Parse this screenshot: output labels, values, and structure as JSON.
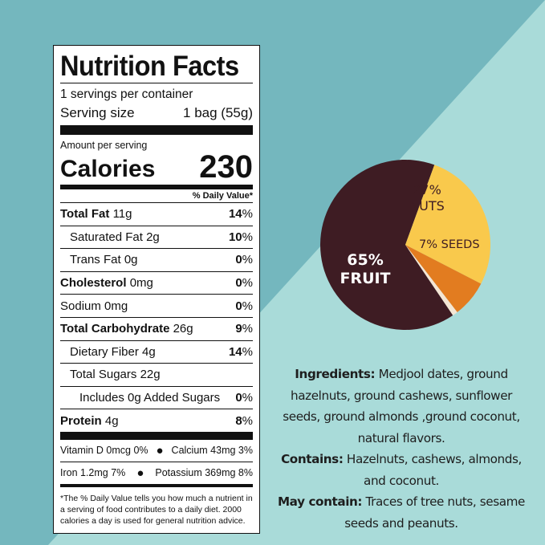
{
  "colors": {
    "background_dark": "#74b7be",
    "background_light": "#a9dbd9",
    "fruit": "#3e1c23",
    "nuts": "#f9c94c",
    "seeds": "#e27c20",
    "other": "#f4e6d4"
  },
  "nutrition": {
    "title": "Nutrition Facts",
    "servings": "1 servings per container",
    "serving_size_label": "Serving size",
    "serving_size_value": "1 bag (55g)",
    "amount_per_serving": "Amount per serving",
    "calories_label": "Calories",
    "calories_value": "230",
    "dv_header": "% Daily Value*",
    "rows": [
      {
        "label": "Total Fat",
        "amount": "11g",
        "dv": "14",
        "bold": true
      },
      {
        "label": "Saturated Fat",
        "amount": "2g",
        "dv": "10"
      },
      {
        "label": "Trans Fat",
        "amount": "0g",
        "dv": "0"
      },
      {
        "label": "Cholesterol",
        "amount": "0mg",
        "dv": "0",
        "bold": true
      },
      {
        "label": "Sodium",
        "amount": "0mg",
        "dv": "0"
      },
      {
        "label": "Total Carbohydrate",
        "amount": "26g",
        "dv": "9",
        "bold": true
      },
      {
        "label": "Dietary Fiber",
        "amount": "4g",
        "dv": "14"
      },
      {
        "label": "Total Sugars",
        "amount": "22g",
        "dv": ""
      },
      {
        "label": "Includes 0g Added Sugars",
        "amount": "",
        "dv": "0"
      },
      {
        "label": "Protein",
        "amount": "4g",
        "dv": "8",
        "bold": true
      }
    ],
    "vitamins": {
      "vitamin_d": "Vitamin D 0mcg 0%",
      "calcium": "Calcium 43mg 3%",
      "iron": "Iron 1.2mg 7%",
      "potassium": "Potassium 369mg 8%",
      "bullet": "●"
    },
    "footnote": "*The % Daily Value tells you how much a nutrient in a serving of food contributes to a daily diet. 2000 calories a day is used for general nutrition advice."
  },
  "pie": {
    "slices": [
      {
        "label": "FRUIT",
        "percent": "65%",
        "value": 65
      },
      {
        "label": "NUTS",
        "percent": "27%",
        "value": 27
      },
      {
        "label": "SEEDS",
        "percent": "7%",
        "value": 7
      },
      {
        "label": "",
        "percent": "",
        "value": 1
      }
    ]
  },
  "ingredients": {
    "ingredients_label": "Ingredients:",
    "ingredients_text": " Medjool dates, ground hazelnuts, ground cashews, sunflower seeds, ground almonds ,ground coconut, natural flavors.",
    "contains_label": "Contains:",
    "contains_text": " Hazelnuts, cashews, almonds, and coconut.",
    "may_contain_label": "May contain:",
    "may_contain_text": " Traces of tree nuts, sesame seeds and peanuts."
  }
}
